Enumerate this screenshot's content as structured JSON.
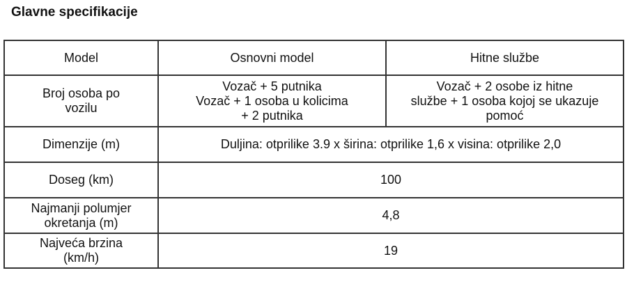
{
  "title": "Glavne specifikacije",
  "table": {
    "header": [
      "Model",
      "Osnovni model",
      "Hitne službe"
    ],
    "rows": [
      {
        "label": "Broj osoba po\nvozilu",
        "basic": "Vozač + 5 putnika\nVozač + 1 osoba u kolicima\n+ 2 putnika",
        "emergency": "Vozač + 2 osobe iz hitne\nslužbe + 1 osoba kojoj se ukazuje\npomoć"
      },
      {
        "label": "Dimenzije (m)",
        "value": "Duljina: otprilike 3.9 x širina: otprilike 1,6 x visina: otprilike 2,0"
      },
      {
        "label": "Doseg (km)",
        "value": "100"
      },
      {
        "label": "Najmanji polumjer\nokretanja (m)",
        "value": "4,8"
      },
      {
        "label": "Najveća brzina\n(km/h)",
        "value": "19"
      }
    ]
  }
}
